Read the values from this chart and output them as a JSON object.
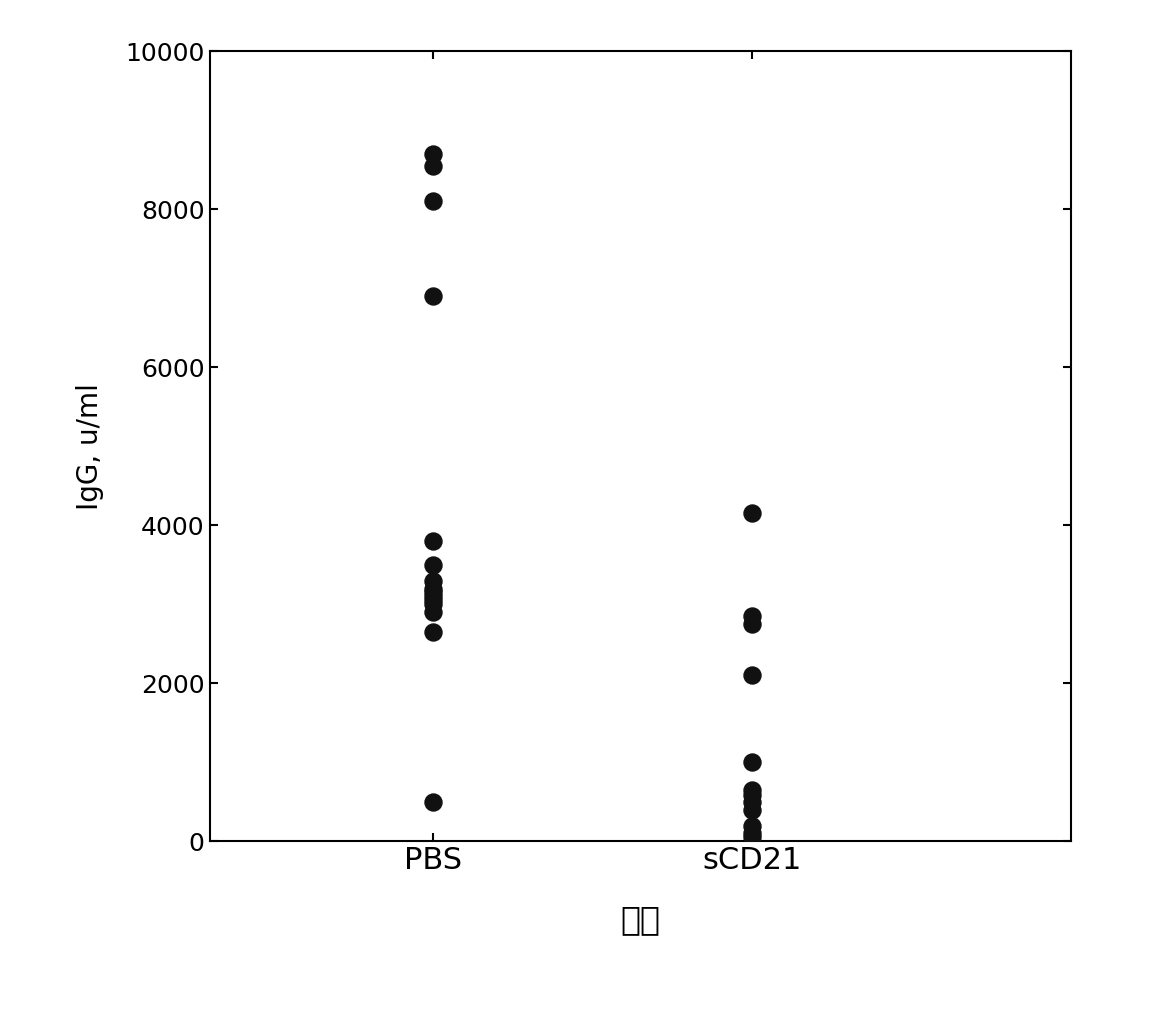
{
  "pbs_values": [
    8700,
    8550,
    8100,
    6900,
    3800,
    3500,
    3300,
    3200,
    3150,
    3100,
    3050,
    3000,
    2900,
    2650,
    500
  ],
  "scd21_values": [
    4150,
    2850,
    2750,
    2100,
    1000,
    650,
    580,
    500,
    400,
    200,
    100,
    50
  ],
  "xlabel": "处理",
  "ylabel": "IgG, u/ml",
  "ylim": [
    0,
    10000
  ],
  "yticks": [
    0,
    2000,
    4000,
    6000,
    8000,
    10000
  ],
  "categories": [
    "PBS",
    "sCD21"
  ],
  "pbs_x": 1,
  "scd21_x": 2,
  "xlim": [
    0.3,
    3.0
  ],
  "dot_color": "#111111",
  "dot_size": 150,
  "background_color": "#ffffff",
  "xlabel_fontsize": 24,
  "ylabel_fontsize": 20,
  "tick_fontsize": 18,
  "xtick_fontsize": 22
}
